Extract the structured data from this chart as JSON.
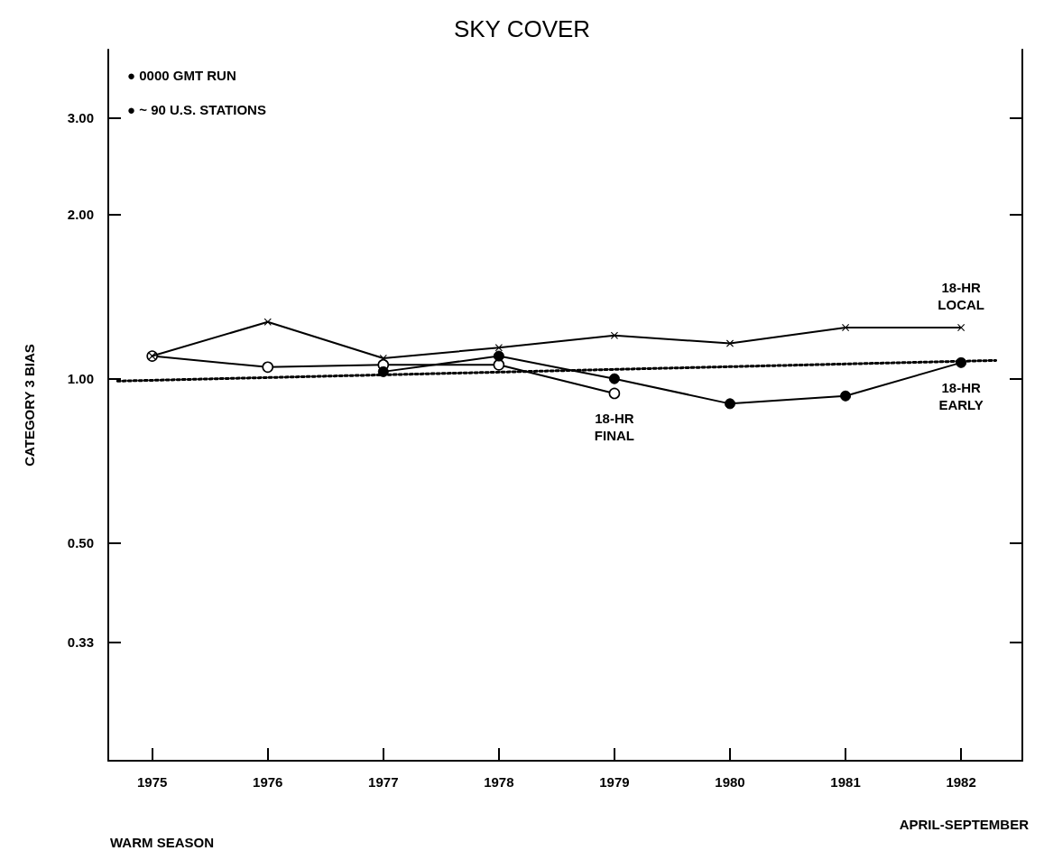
{
  "chart_data": {
    "type": "line",
    "title": "SKY COVER",
    "ylabel": "CATEGORY 3 BIAS",
    "log": "y",
    "grid": false,
    "legend": false,
    "line_style": "solid",
    "xlim": [
      1974.62,
      1982.53
    ],
    "xticks": [
      1975,
      1976,
      1977,
      1978,
      1979,
      1980,
      1981,
      1982
    ],
    "ylim": [
      0.2,
      4
    ],
    "yticks": [
      {
        "value": 0.33,
        "label": "0.33"
      },
      {
        "value": 0.5,
        "label": "0.50"
      },
      {
        "value": 1,
        "label": "1.00"
      },
      {
        "value": 2,
        "label": "2.00"
      },
      {
        "value": 3,
        "label": "3.00"
      }
    ],
    "annotations": [
      "● 0000 GMT RUN",
      "● ~ 90 U.S. STATIONS",
      "WARM SEASON",
      "APRIL-SEPTEMBER"
    ],
    "series": [
      {
        "name": "18-HR FINAL",
        "color": "#000000",
        "marker": "circle",
        "x": [
          1975,
          1976,
          1977,
          1978,
          1979
        ],
        "values": [
          1.1,
          1.05,
          1.06,
          1.06,
          0.94
        ]
      },
      {
        "name": "18-HR LOCAL",
        "color": "#000000",
        "marker": "cross",
        "x": [
          1975,
          1976,
          1977,
          1978,
          1979,
          1980,
          1981,
          1982
        ],
        "values": [
          1.1,
          1.27,
          1.09,
          1.14,
          1.2,
          1.16,
          1.24,
          1.24
        ]
      },
      {
        "name": "18-HR EARLY",
        "color": "#000000",
        "marker": "circle",
        "x": [
          1977,
          1978,
          1979,
          1980,
          1981,
          1982
        ],
        "values": [
          1.03,
          1.1,
          1.0,
          0.9,
          0.93,
          1.07
        ]
      },
      {
        "type": "line",
        "color": "#000000",
        "marker": "none",
        "line_style": "dotted",
        "x": [
          1974.7,
          1982.3
        ],
        "values": [
          0.99,
          1.08
        ]
      }
    ]
  }
}
